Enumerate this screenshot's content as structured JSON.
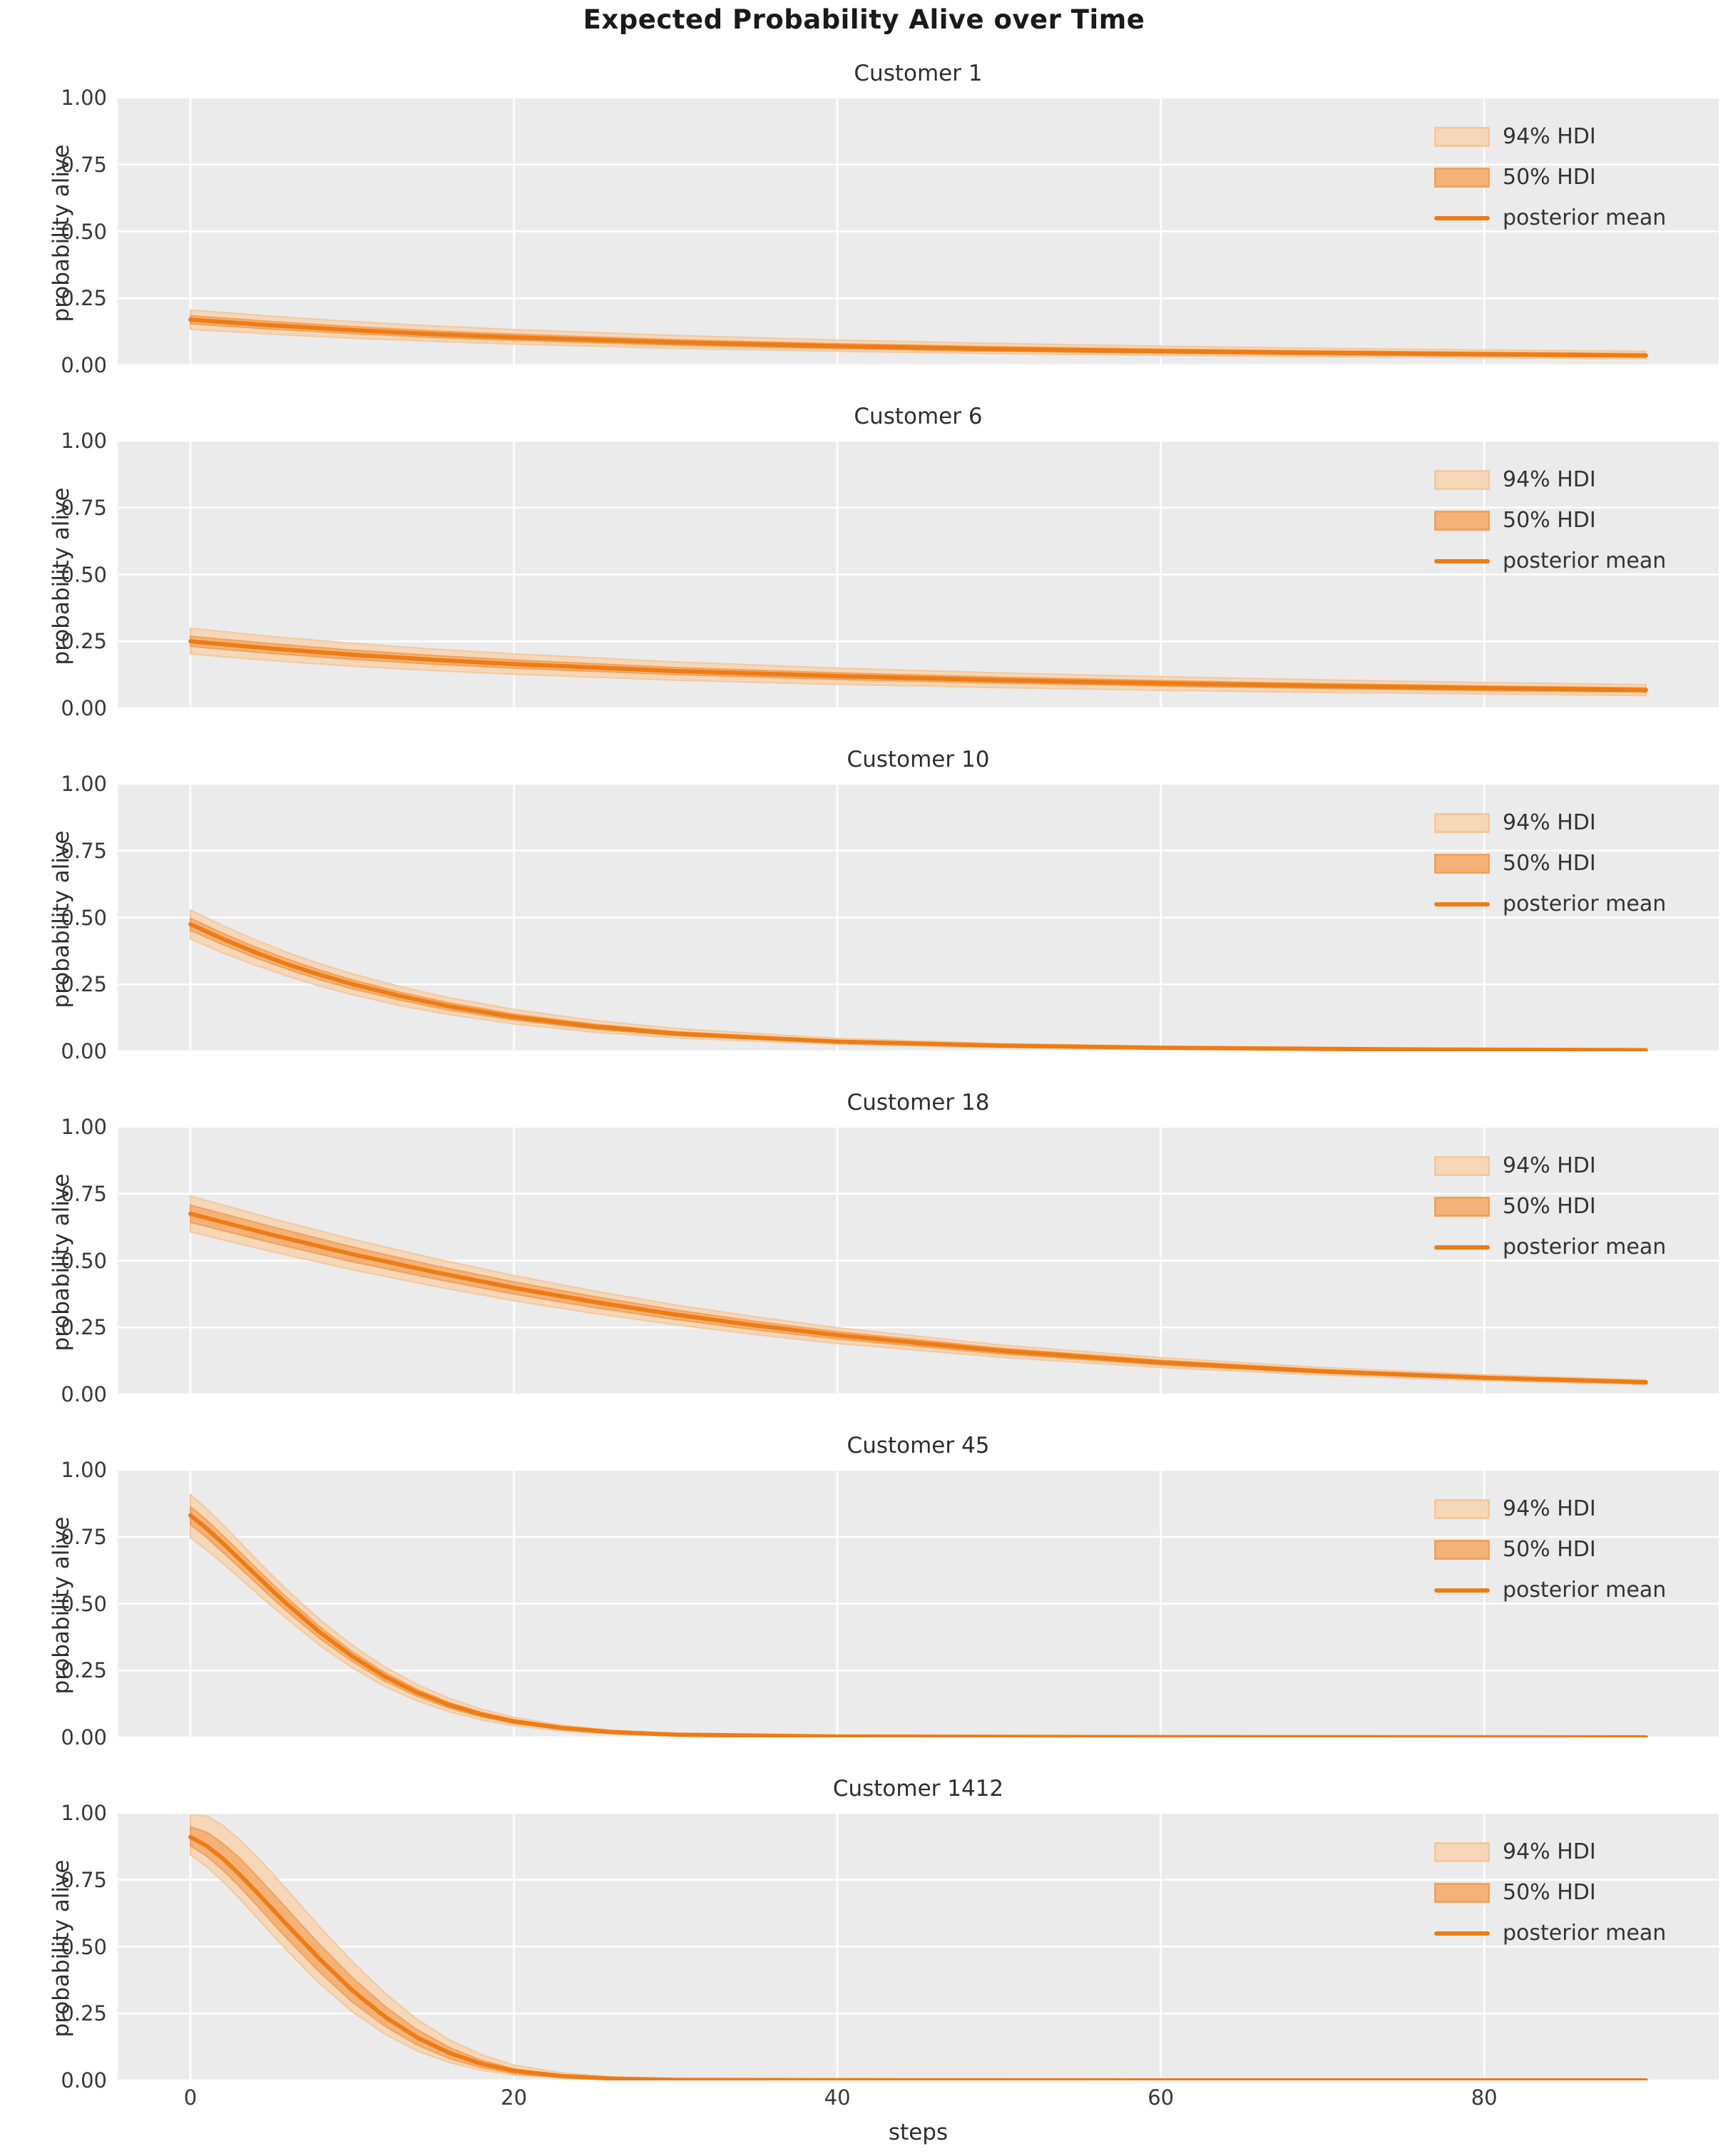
{
  "figure": {
    "title": "Expected Probability Alive over Time",
    "xlabel": "steps",
    "ylabel": "probability alive"
  },
  "axes": {
    "background": "#ebebeb",
    "grid_color": "#ffffff",
    "xlim": [
      -4.5,
      94.5
    ],
    "ylim": [
      0,
      1
    ],
    "xticks": [
      0,
      20,
      40,
      60,
      80
    ],
    "xtick_labels": [
      "0",
      "20",
      "40",
      "60",
      "80"
    ],
    "yticks": [
      1.0,
      0.75,
      0.5,
      0.25,
      0.0
    ],
    "ytick_labels": [
      "1.00",
      "0.75",
      "0.50",
      "0.25",
      "0.00"
    ]
  },
  "legend": {
    "items": [
      {
        "label": "94% HDI",
        "type": "patch",
        "fill": "#f6d7b8",
        "edge": "#f2c9a0"
      },
      {
        "label": "50% HDI",
        "type": "patch",
        "fill": "#f5b278",
        "edge": "#f0a25c"
      },
      {
        "label": "posterior mean",
        "type": "line",
        "color": "#ee7c14"
      }
    ]
  },
  "colors": {
    "hdi94_fill": "#f6d7b8",
    "hdi94_edge": "#f2c9a0",
    "hdi50_fill": "#f5b278",
    "hdi50_edge": "#f0a25c",
    "mean_line": "#ee7c14"
  },
  "chart_data": {
    "type": "line",
    "title": "Expected Probability Alive over Time",
    "xlabel": "steps",
    "ylabel": "probability alive",
    "xlim": [
      -4.5,
      94.5
    ],
    "ylim": [
      0,
      1
    ],
    "grid": true,
    "legend_position": "upper right",
    "subplots": [
      {
        "title": "Customer 1",
        "x": [
          0,
          5,
          10,
          15,
          20,
          30,
          40,
          50,
          60,
          70,
          80,
          90
        ],
        "mean": [
          0.17,
          0.149,
          0.131,
          0.116,
          0.104,
          0.085,
          0.071,
          0.06,
          0.052,
          0.046,
          0.041,
          0.036
        ],
        "hi94": [
          0.206,
          0.183,
          0.163,
          0.147,
          0.133,
          0.111,
          0.094,
          0.081,
          0.071,
          0.063,
          0.057,
          0.052
        ],
        "lo94": [
          0.134,
          0.116,
          0.101,
          0.089,
          0.079,
          0.063,
          0.052,
          0.043,
          0.037,
          0.032,
          0.028,
          0.024
        ],
        "hi50": [
          0.185,
          0.163,
          0.144,
          0.128,
          0.116,
          0.095,
          0.08,
          0.069,
          0.06,
          0.053,
          0.048,
          0.043
        ],
        "lo50": [
          0.155,
          0.135,
          0.118,
          0.104,
          0.093,
          0.075,
          0.062,
          0.052,
          0.045,
          0.039,
          0.034,
          0.03
        ]
      },
      {
        "title": "Customer 6",
        "x": [
          0,
          5,
          10,
          15,
          20,
          30,
          40,
          50,
          60,
          70,
          80,
          90
        ],
        "mean": [
          0.25,
          0.223,
          0.2,
          0.181,
          0.165,
          0.139,
          0.12,
          0.105,
          0.093,
          0.083,
          0.075,
          0.068
        ],
        "hi94": [
          0.299,
          0.268,
          0.243,
          0.221,
          0.203,
          0.173,
          0.15,
          0.132,
          0.118,
          0.106,
          0.096,
          0.088
        ],
        "lo94": [
          0.203,
          0.178,
          0.157,
          0.141,
          0.127,
          0.105,
          0.089,
          0.077,
          0.067,
          0.059,
          0.053,
          0.047
        ],
        "hi50": [
          0.269,
          0.241,
          0.217,
          0.197,
          0.18,
          0.152,
          0.132,
          0.116,
          0.103,
          0.092,
          0.083,
          0.076
        ],
        "lo50": [
          0.231,
          0.205,
          0.183,
          0.165,
          0.15,
          0.126,
          0.108,
          0.094,
          0.083,
          0.074,
          0.066,
          0.06
        ]
      },
      {
        "title": "Customer 10",
        "x": [
          0,
          2,
          4,
          6,
          8,
          10,
          13,
          16,
          20,
          25,
          30,
          40,
          50,
          60,
          75,
          90
        ],
        "mean": [
          0.475,
          0.42,
          0.37,
          0.325,
          0.286,
          0.251,
          0.206,
          0.168,
          0.128,
          0.092,
          0.066,
          0.036,
          0.021,
          0.013,
          0.007,
          0.004
        ],
        "hi94": [
          0.528,
          0.47,
          0.417,
          0.369,
          0.327,
          0.29,
          0.241,
          0.2,
          0.156,
          0.115,
          0.085,
          0.048,
          0.029,
          0.018,
          0.01,
          0.006
        ],
        "lo94": [
          0.42,
          0.368,
          0.322,
          0.281,
          0.244,
          0.212,
          0.17,
          0.137,
          0.102,
          0.071,
          0.05,
          0.026,
          0.014,
          0.008,
          0.004,
          0.002
        ],
        "hi50": [
          0.497,
          0.441,
          0.39,
          0.344,
          0.303,
          0.267,
          0.22,
          0.181,
          0.139,
          0.101,
          0.073,
          0.04,
          0.024,
          0.015,
          0.008,
          0.005
        ],
        "lo50": [
          0.452,
          0.399,
          0.35,
          0.307,
          0.268,
          0.234,
          0.191,
          0.154,
          0.117,
          0.083,
          0.059,
          0.031,
          0.017,
          0.01,
          0.005,
          0.003
        ]
      },
      {
        "title": "Customer 18",
        "x": [
          0,
          5,
          10,
          15,
          20,
          25,
          30,
          35,
          40,
          50,
          60,
          70,
          80,
          90
        ],
        "mean": [
          0.675,
          0.597,
          0.524,
          0.458,
          0.398,
          0.345,
          0.298,
          0.257,
          0.221,
          0.163,
          0.119,
          0.086,
          0.062,
          0.045
        ],
        "hi94": [
          0.741,
          0.658,
          0.58,
          0.509,
          0.444,
          0.386,
          0.334,
          0.289,
          0.249,
          0.185,
          0.137,
          0.1,
          0.073,
          0.054
        ],
        "lo94": [
          0.607,
          0.534,
          0.466,
          0.405,
          0.35,
          0.302,
          0.26,
          0.223,
          0.19,
          0.139,
          0.1,
          0.072,
          0.051,
          0.037
        ],
        "hi50": [
          0.707,
          0.627,
          0.551,
          0.482,
          0.42,
          0.365,
          0.315,
          0.272,
          0.234,
          0.173,
          0.127,
          0.092,
          0.067,
          0.049
        ],
        "lo50": [
          0.643,
          0.567,
          0.496,
          0.433,
          0.375,
          0.324,
          0.28,
          0.241,
          0.207,
          0.152,
          0.11,
          0.079,
          0.057,
          0.041
        ]
      },
      {
        "title": "Customer 45",
        "x": [
          0,
          1,
          2,
          3,
          4,
          5,
          6,
          8,
          10,
          12,
          14,
          16,
          18,
          20,
          23,
          26,
          30,
          40,
          60,
          90
        ],
        "mean": [
          0.83,
          0.781,
          0.726,
          0.668,
          0.61,
          0.552,
          0.497,
          0.393,
          0.303,
          0.228,
          0.168,
          0.121,
          0.086,
          0.06,
          0.035,
          0.02,
          0.01,
          0.003,
          0.001,
          0.0
        ],
        "hi94": [
          0.908,
          0.855,
          0.795,
          0.733,
          0.67,
          0.609,
          0.55,
          0.44,
          0.345,
          0.264,
          0.198,
          0.146,
          0.105,
          0.075,
          0.045,
          0.027,
          0.014,
          0.004,
          0.001,
          0.0
        ],
        "lo94": [
          0.746,
          0.701,
          0.651,
          0.598,
          0.545,
          0.492,
          0.441,
          0.344,
          0.26,
          0.191,
          0.137,
          0.096,
          0.065,
          0.044,
          0.024,
          0.013,
          0.006,
          0.001,
          0.0,
          0.0
        ],
        "hi50": [
          0.863,
          0.812,
          0.755,
          0.696,
          0.636,
          0.577,
          0.52,
          0.413,
          0.32,
          0.243,
          0.18,
          0.13,
          0.093,
          0.066,
          0.039,
          0.022,
          0.011,
          0.003,
          0.001,
          0.0
        ],
        "lo50": [
          0.796,
          0.747,
          0.693,
          0.637,
          0.581,
          0.524,
          0.47,
          0.37,
          0.284,
          0.211,
          0.154,
          0.109,
          0.077,
          0.052,
          0.029,
          0.016,
          0.008,
          0.002,
          0.0,
          0.0
        ]
      },
      {
        "title": "Customer 1412",
        "x": [
          0,
          1,
          2,
          3,
          4,
          5,
          6,
          8,
          10,
          12,
          14,
          16,
          18,
          20,
          23,
          26,
          30,
          40,
          60,
          90
        ],
        "mean": [
          0.91,
          0.877,
          0.83,
          0.772,
          0.71,
          0.645,
          0.58,
          0.453,
          0.337,
          0.239,
          0.161,
          0.103,
          0.062,
          0.036,
          0.016,
          0.007,
          0.002,
          0.001,
          0.0,
          0.0
        ],
        "hi94": [
          0.993,
          0.989,
          0.953,
          0.903,
          0.843,
          0.779,
          0.711,
          0.574,
          0.445,
          0.328,
          0.229,
          0.152,
          0.096,
          0.057,
          0.028,
          0.013,
          0.005,
          0.001,
          0.0,
          0.0
        ],
        "lo94": [
          0.843,
          0.799,
          0.744,
          0.682,
          0.616,
          0.549,
          0.484,
          0.362,
          0.257,
          0.174,
          0.111,
          0.067,
          0.038,
          0.02,
          0.008,
          0.003,
          0.001,
          0.0,
          0.0,
          0.0
        ],
        "hi50": [
          0.948,
          0.928,
          0.886,
          0.833,
          0.771,
          0.706,
          0.639,
          0.507,
          0.385,
          0.278,
          0.19,
          0.123,
          0.075,
          0.043,
          0.019,
          0.008,
          0.003,
          0.001,
          0.0,
          0.0
        ],
        "lo50": [
          0.877,
          0.839,
          0.787,
          0.727,
          0.662,
          0.594,
          0.529,
          0.404,
          0.294,
          0.204,
          0.133,
          0.082,
          0.048,
          0.026,
          0.011,
          0.004,
          0.001,
          0.0,
          0.0,
          0.0
        ]
      }
    ]
  }
}
